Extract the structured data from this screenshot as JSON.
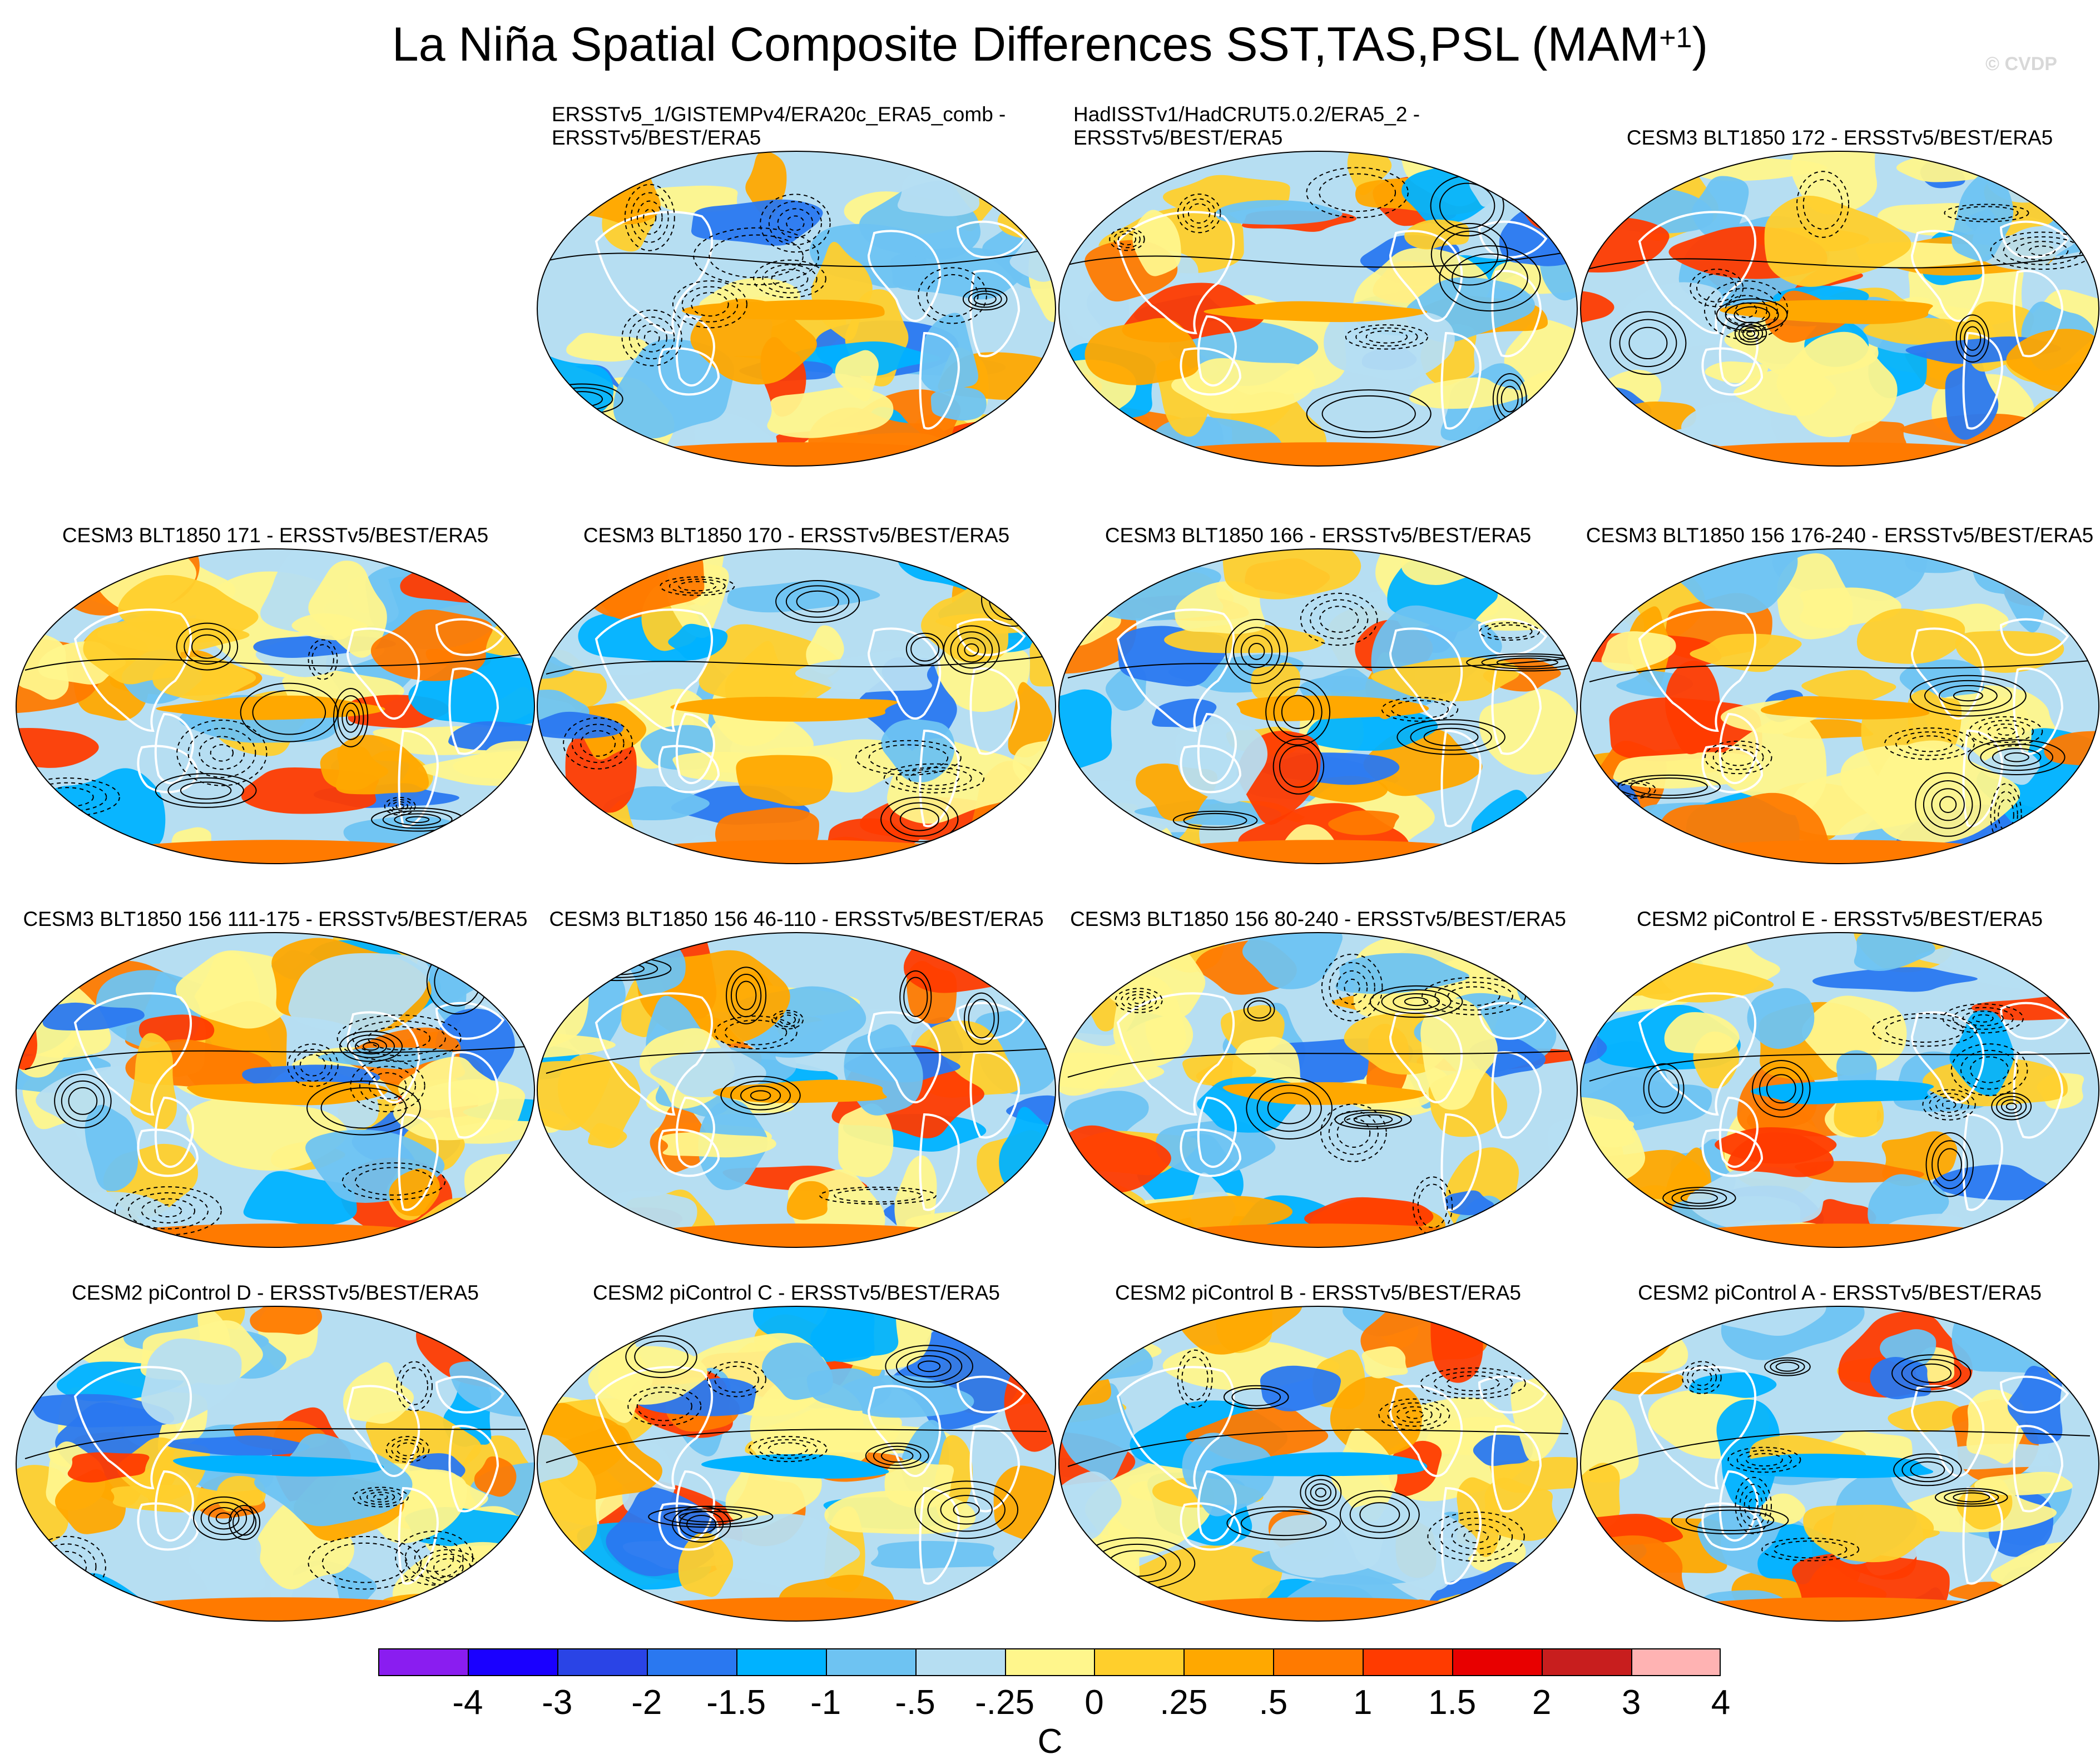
{
  "title": "La Niña Spatial Composite Differences SST,TAS,PSL (MAM",
  "title_sup": "+1",
  "title_close": ")",
  "watermark": "© CVDP",
  "panels": [
    {
      "title": "ERSSTv5_1/GISTEMPv4/ERA20c_ERA5_comb -\nERSSTv5/BEST/ERA5"
    },
    {
      "title": "HadISSTv1/HadCRUT5.0.2/ERA5_2 -\nERSSTv5/BEST/ERA5"
    },
    {
      "title": "CESM3 BLT1850 172 - ERSSTv5/BEST/ERA5"
    },
    {
      "title": "CESM3 BLT1850 171 - ERSSTv5/BEST/ERA5"
    },
    {
      "title": "CESM3 BLT1850 170 - ERSSTv5/BEST/ERA5"
    },
    {
      "title": "CESM3 BLT1850 166 - ERSSTv5/BEST/ERA5"
    },
    {
      "title": "CESM3 BLT1850 156 176-240 - ERSSTv5/BEST/ERA5"
    },
    {
      "title": "CESM3 BLT1850 156 111-175 - ERSSTv5/BEST/ERA5"
    },
    {
      "title": "CESM3 BLT1850 156 46-110 - ERSSTv5/BEST/ERA5"
    },
    {
      "title": "CESM3 BLT1850 156 80-240 - ERSSTv5/BEST/ERA5"
    },
    {
      "title": "CESM2 piControl E - ERSSTv5/BEST/ERA5"
    },
    {
      "title": "CESM2 piControl D - ERSSTv5/BEST/ERA5"
    },
    {
      "title": "CESM2 piControl C - ERSSTv5/BEST/ERA5"
    },
    {
      "title": "CESM2 piControl B - ERSSTv5/BEST/ERA5"
    },
    {
      "title": "CESM2 piControl A - ERSSTv5/BEST/ERA5"
    }
  ],
  "colorbar": {
    "labels": [
      "-4",
      "-3",
      "-2",
      "-1.5",
      "-1",
      "-.5",
      "-.25",
      "0",
      ".25",
      ".5",
      "1",
      "1.5",
      "2",
      "3",
      "4"
    ],
    "colors": [
      "#8a1df0",
      "#1a00ff",
      "#2a44e6",
      "#2a78f0",
      "#00b2ff",
      "#6ec3f2",
      "#b6def2",
      "#fff68c",
      "#ffcf2c",
      "#ffa800",
      "#ff7a00",
      "#ff3b00",
      "#e80000",
      "#c81e1e",
      "#ffb3b3"
    ],
    "unit": "C"
  }
}
